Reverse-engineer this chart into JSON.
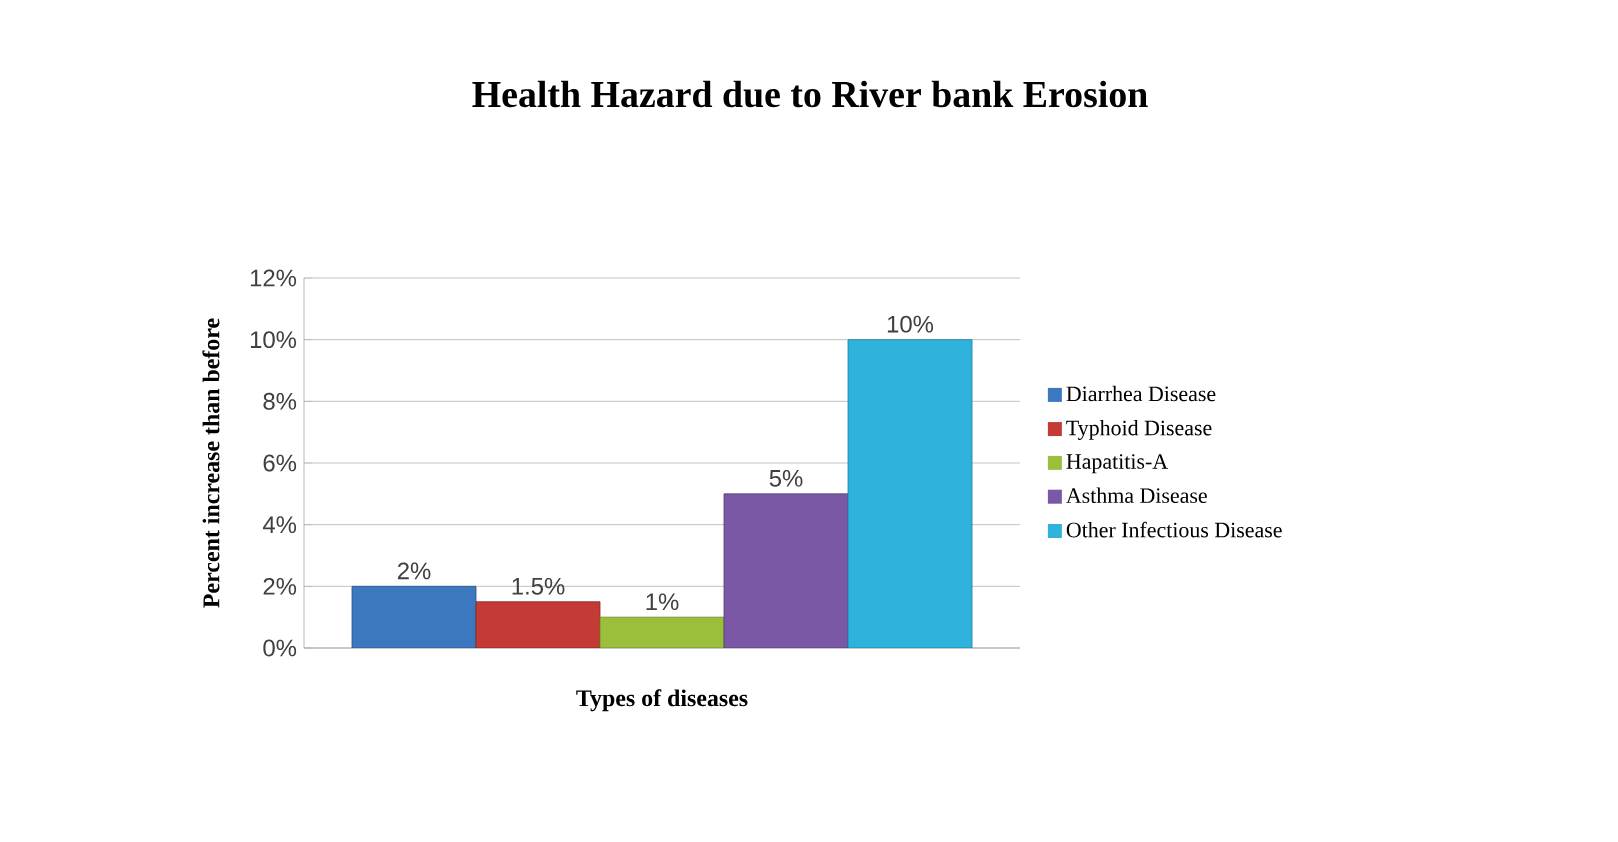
{
  "chart_data": {
    "type": "bar",
    "title": "Health Hazard due to River bank Erosion",
    "xlabel": "Types of diseases",
    "ylabel": "Percent increase than before",
    "categories": [
      null
    ],
    "series": [
      {
        "name": "Diarrhea Disease",
        "color": "#3c78c0",
        "values": [
          2
        ],
        "value_labels": [
          "2%"
        ]
      },
      {
        "name": "Typhoid Disease",
        "color": "#c33a37",
        "values": [
          1.5
        ],
        "value_labels": [
          "1.5%"
        ]
      },
      {
        "name": "Hapatitis-A",
        "color": "#9bbf3a",
        "values": [
          1
        ],
        "value_labels": [
          "1%"
        ]
      },
      {
        "name": "Asthma Disease",
        "color": "#7a58a6",
        "values": [
          5
        ],
        "value_labels": [
          "5%"
        ]
      },
      {
        "name": "Other Infectious Disease",
        "color": "#2fb3dc",
        "values": [
          10
        ],
        "value_labels": [
          "10%"
        ]
      }
    ],
    "ylim": [
      0,
      12
    ],
    "yticks": [
      {
        "value": 0,
        "label": "0%"
      },
      {
        "value": 2,
        "label": "2%"
      },
      {
        "value": 4,
        "label": "4%"
      },
      {
        "value": 6,
        "label": "6%"
      },
      {
        "value": 8,
        "label": "8%"
      },
      {
        "value": 10,
        "label": "10%"
      },
      {
        "value": 12,
        "label": "12%"
      }
    ],
    "grid": "y",
    "legend": "right"
  }
}
